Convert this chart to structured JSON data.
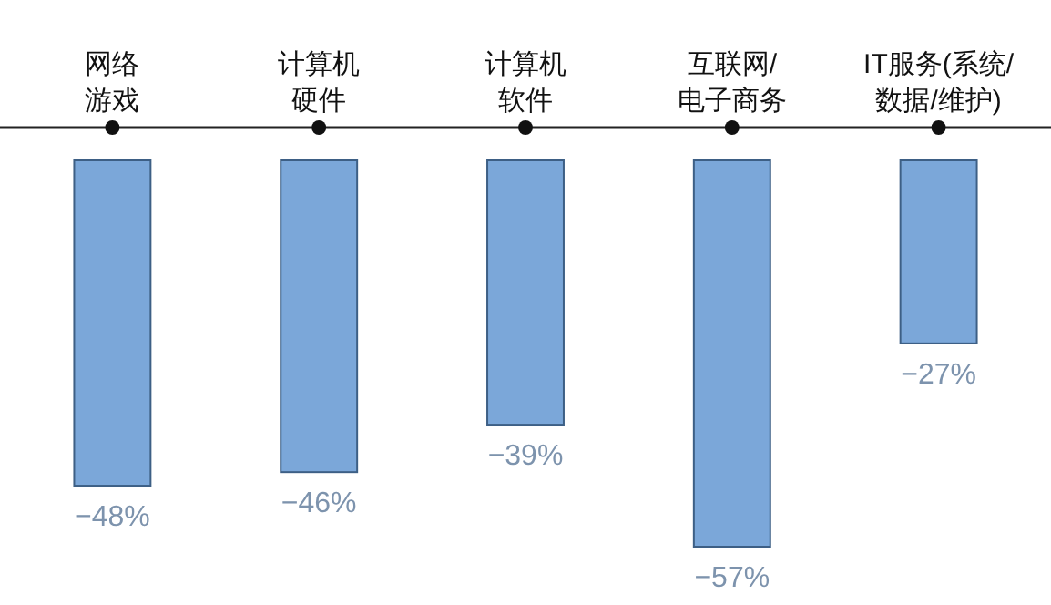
{
  "chart_data": {
    "type": "bar",
    "categories": [
      "网络游戏",
      "计算机硬件",
      "计算机软件",
      "互联网/电子商务",
      "IT服务(系统/数据/维护)"
    ],
    "values": [
      -48,
      -46,
      -39,
      -57,
      -27
    ],
    "color": "#7ba7d9",
    "value_labels": [
      "−48%",
      "−46%",
      "−39%",
      "−57%",
      "−27%"
    ]
  }
}
